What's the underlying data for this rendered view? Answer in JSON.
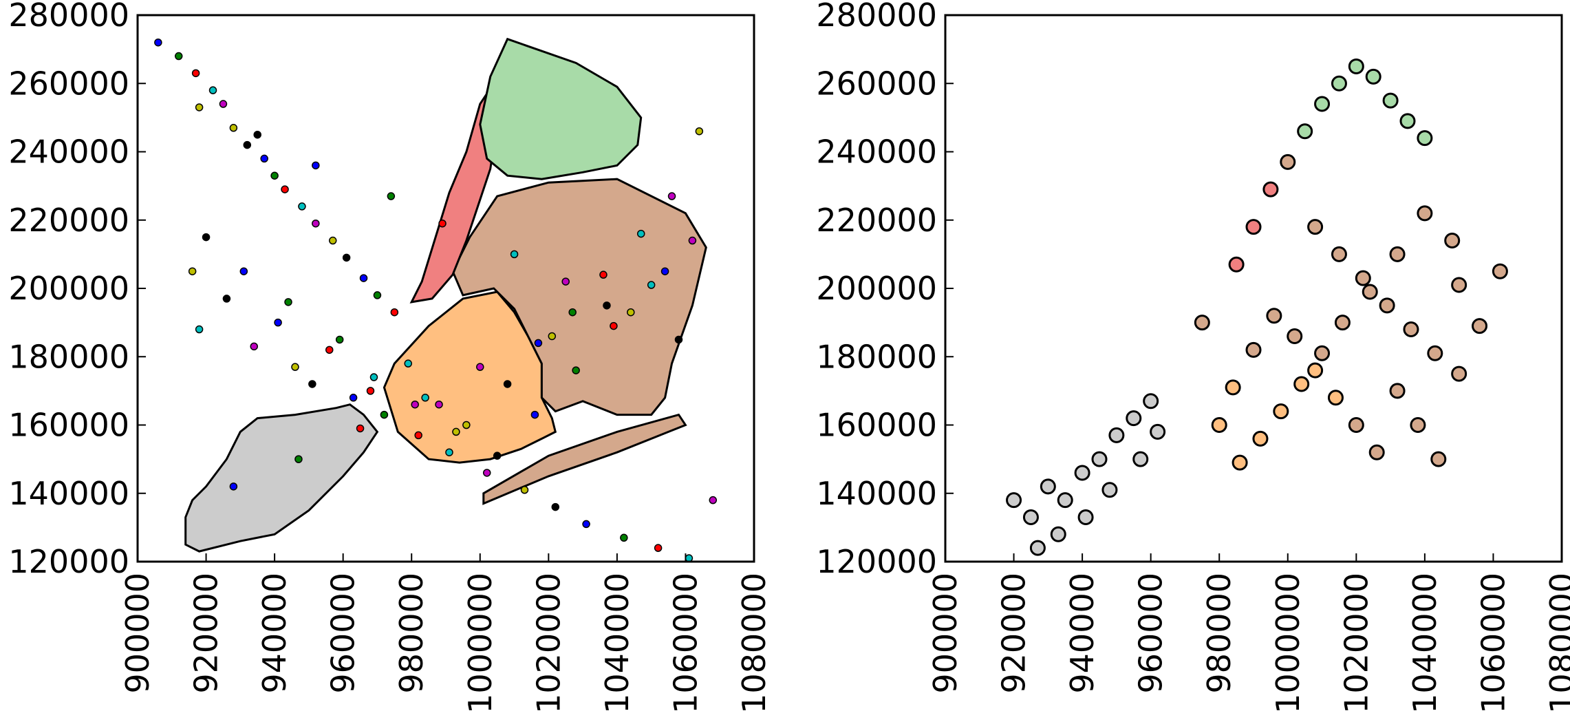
{
  "chart_data": [
    {
      "type": "scatter",
      "title": "",
      "xlabel": "",
      "ylabel": "",
      "xlim": [
        900000,
        1080000
      ],
      "ylim": [
        120000,
        280000
      ],
      "x_ticks": [
        "900000",
        "920000",
        "940000",
        "960000",
        "980000",
        "1000000",
        "1020000",
        "1040000",
        "1060000",
        "1080000"
      ],
      "y_ticks": [
        "120000",
        "140000",
        "160000",
        "180000",
        "200000",
        "220000",
        "240000",
        "260000",
        "280000"
      ],
      "grid": false,
      "legend": "none",
      "point_colors": [
        "#0000ff",
        "#008000",
        "#ff0000",
        "#00bfbf",
        "#bf00bf",
        "#bfbf00",
        "#000000"
      ],
      "regions": [
        {
          "fill": "#cccccc",
          "points": [
            [
              914000,
              125000
            ],
            [
              918000,
              123000
            ],
            [
              930000,
              126000
            ],
            [
              940000,
              128000
            ],
            [
              950000,
              135000
            ],
            [
              960000,
              145000
            ],
            [
              966000,
              152000
            ],
            [
              970000,
              158000
            ],
            [
              966000,
              163000
            ],
            [
              962000,
              166000
            ],
            [
              958000,
              165000
            ],
            [
              946000,
              163000
            ],
            [
              935000,
              162000
            ],
            [
              930000,
              158000
            ],
            [
              926000,
              150000
            ],
            [
              920000,
              142000
            ],
            [
              916000,
              138000
            ],
            [
              914000,
              133000
            ]
          ]
        },
        {
          "fill": "#ffbf80",
          "points": [
            [
              975000,
              178000
            ],
            [
              972000,
              171000
            ],
            [
              976000,
              158000
            ],
            [
              985000,
              150000
            ],
            [
              994000,
              149000
            ],
            [
              1003000,
              150000
            ],
            [
              1012000,
              153000
            ],
            [
              1018000,
              156000
            ],
            [
              1022000,
              158000
            ],
            [
              1021000,
              162000
            ],
            [
              1018000,
              168000
            ],
            [
              1018000,
              178000
            ],
            [
              1014000,
              186000
            ],
            [
              1010000,
              193000
            ],
            [
              1005000,
              199000
            ],
            [
              995000,
              197000
            ],
            [
              985000,
              189000
            ]
          ]
        },
        {
          "fill": "#d4a88c",
          "points": [
            [
              995000,
              198000
            ],
            [
              1004000,
              200000
            ],
            [
              1010000,
              194000
            ],
            [
              1014000,
              186000
            ],
            [
              1018000,
              178000
            ],
            [
              1018000,
              168000
            ],
            [
              1022000,
              164000
            ],
            [
              1030000,
              167000
            ],
            [
              1040000,
              163000
            ],
            [
              1050000,
              163000
            ],
            [
              1054000,
              168000
            ],
            [
              1056000,
              178000
            ],
            [
              1062000,
              195000
            ],
            [
              1066000,
              212000
            ],
            [
              1060000,
              222000
            ],
            [
              1040000,
              232000
            ],
            [
              1020000,
              231000
            ],
            [
              1005000,
              227000
            ],
            [
              997000,
              215000
            ],
            [
              992000,
              205000
            ]
          ]
        },
        {
          "fill": "#f08080",
          "points": [
            [
              980000,
              196000
            ],
            [
              983000,
              202000
            ],
            [
              987000,
              215000
            ],
            [
              991000,
              228000
            ],
            [
              996000,
              240000
            ],
            [
              1000000,
              254000
            ],
            [
              1002000,
              257000
            ],
            [
              1005000,
              248000
            ],
            [
              1003000,
              235000
            ],
            [
              1000000,
              226000
            ],
            [
              996000,
              214000
            ],
            [
              992000,
              204000
            ],
            [
              986000,
              197000
            ]
          ]
        },
        {
          "fill": "#a8dba8",
          "points": [
            [
              1008000,
              273000
            ],
            [
              1028000,
              266000
            ],
            [
              1040000,
              259000
            ],
            [
              1047000,
              250000
            ],
            [
              1046000,
              242000
            ],
            [
              1040000,
              236000
            ],
            [
              1030000,
              234000
            ],
            [
              1018000,
              232000
            ],
            [
              1008000,
              233000
            ],
            [
              1002000,
              238000
            ],
            [
              1000000,
              248000
            ],
            [
              1003000,
              262000
            ]
          ]
        },
        {
          "fill": "#d4a88c",
          "points": [
            [
              1001000,
              137000
            ],
            [
              1020000,
              145000
            ],
            [
              1040000,
              152000
            ],
            [
              1055000,
              158000
            ],
            [
              1060000,
              160000
            ],
            [
              1058000,
              163000
            ],
            [
              1040000,
              158000
            ],
            [
              1020000,
              151000
            ],
            [
              1001000,
              140000
            ]
          ]
        }
      ],
      "series": [
        {
          "x": [
            906000,
            912000,
            917000,
            922000,
            925000,
            928000,
            932000,
            937000,
            940000,
            943000,
            948000,
            952000,
            957000,
            961000,
            966000,
            970000,
            975000,
            918000,
            934000,
            946000,
            951000,
            963000,
            972000,
            982000,
            991000,
            1002000,
            1013000,
            1022000,
            1031000,
            1042000,
            1052000,
            1061000,
            1068000,
            916000,
            926000,
            941000,
            959000,
            968000,
            979000,
            988000,
            996000,
            1008000,
            1017000,
            1027000,
            1036000,
            1047000,
            1056000,
            1064000
          ],
          "y": [
            272000,
            268000,
            263000,
            258000,
            254000,
            247000,
            242000,
            238000,
            233000,
            229000,
            224000,
            219000,
            214000,
            209000,
            203000,
            198000,
            193000,
            188000,
            183000,
            177000,
            172000,
            168000,
            163000,
            157000,
            152000,
            146000,
            141000,
            136000,
            131000,
            127000,
            124000,
            121000,
            138000,
            205000,
            197000,
            190000,
            185000,
            170000,
            178000,
            166000,
            160000,
            172000,
            184000,
            193000,
            204000,
            216000,
            227000,
            246000
          ]
        },
        {
          "x": [
            920000,
            931000,
            944000,
            956000,
            969000,
            981000,
            993000,
            1005000,
            1016000,
            1028000,
            1039000,
            1050000,
            1062000,
            918000,
            935000,
            952000,
            974000,
            989000,
            1010000,
            1025000,
            1044000,
            1058000,
            928000,
            947000,
            965000,
            984000,
            1000000,
            1021000,
            1037000,
            1054000
          ],
          "y": [
            215000,
            205000,
            196000,
            182000,
            174000,
            166000,
            158000,
            151000,
            163000,
            176000,
            189000,
            201000,
            214000,
            253000,
            245000,
            236000,
            227000,
            219000,
            210000,
            202000,
            193000,
            185000,
            142000,
            150000,
            159000,
            168000,
            177000,
            186000,
            195000,
            205000
          ]
        }
      ],
      "panel_b_points": [
        [
          920000,
          138000
        ],
        [
          925000,
          133000
        ],
        [
          930000,
          142000
        ],
        [
          935000,
          138000
        ],
        [
          940000,
          146000
        ],
        [
          945000,
          150000
        ],
        [
          950000,
          157000
        ],
        [
          955000,
          162000
        ],
        [
          960000,
          167000
        ],
        [
          962000,
          158000
        ],
        [
          957000,
          150000
        ],
        [
          948000,
          141000
        ],
        [
          941000,
          133000
        ],
        [
          933000,
          128000
        ],
        [
          927000,
          124000
        ],
        [
          975000,
          190000
        ],
        [
          985000,
          207000
        ],
        [
          990000,
          218000
        ],
        [
          995000,
          229000
        ],
        [
          1000000,
          237000
        ],
        [
          1005000,
          246000
        ],
        [
          1010000,
          254000
        ],
        [
          1015000,
          260000
        ],
        [
          1020000,
          265000
        ],
        [
          1025000,
          262000
        ],
        [
          1030000,
          255000
        ],
        [
          1035000,
          249000
        ],
        [
          1040000,
          244000
        ],
        [
          1008000,
          218000
        ],
        [
          1015000,
          210000
        ],
        [
          1022000,
          203000
        ],
        [
          1029000,
          195000
        ],
        [
          1036000,
          188000
        ],
        [
          1043000,
          181000
        ],
        [
          1050000,
          175000
        ],
        [
          1056000,
          189000
        ],
        [
          1062000,
          205000
        ],
        [
          1048000,
          214000
        ],
        [
          1040000,
          222000
        ],
        [
          1032000,
          210000
        ],
        [
          1024000,
          199000
        ],
        [
          1016000,
          190000
        ],
        [
          1010000,
          181000
        ],
        [
          1004000,
          172000
        ],
        [
          998000,
          164000
        ],
        [
          992000,
          156000
        ],
        [
          986000,
          149000
        ],
        [
          980000,
          160000
        ],
        [
          984000,
          171000
        ],
        [
          990000,
          182000
        ],
        [
          996000,
          192000
        ],
        [
          1002000,
          186000
        ],
        [
          1008000,
          176000
        ],
        [
          1014000,
          168000
        ],
        [
          1020000,
          160000
        ],
        [
          1026000,
          152000
        ],
        [
          1032000,
          170000
        ],
        [
          1038000,
          160000
        ],
        [
          1044000,
          150000
        ],
        [
          1050000,
          201000
        ]
      ]
    }
  ]
}
